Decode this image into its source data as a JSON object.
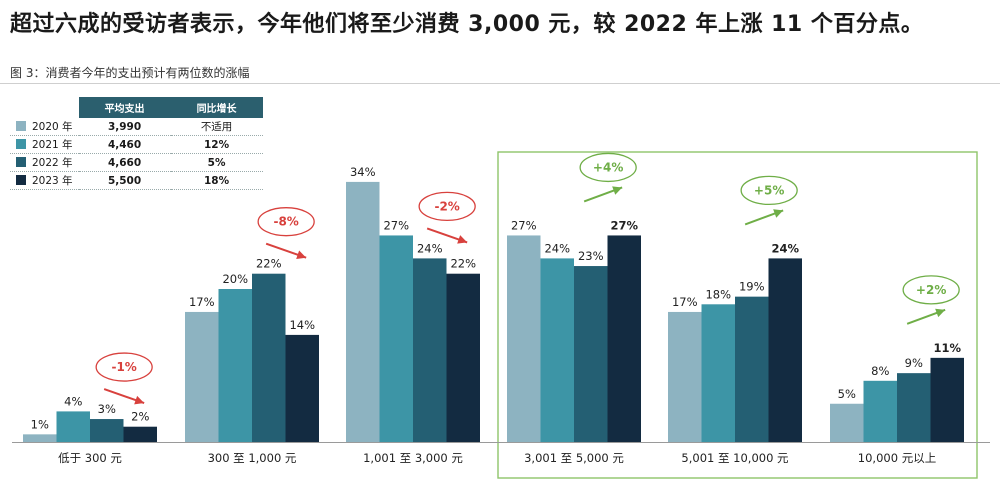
{
  "headline": "超过六成的受访者表示，今年他们将至少消费 3,000 元，较 2022 年上涨 11 个百分点。",
  "figure_caption": "图 3：消费者今年的支出预计有两位数的涨幅",
  "legend_table": {
    "headers": [
      "平均支出",
      "同比增长"
    ],
    "rows": [
      {
        "year": "2020 年",
        "avg": "3,990",
        "yoy": "不适用",
        "color": "#8db3c1"
      },
      {
        "year": "2021 年",
        "avg": "4,460",
        "yoy": "12%",
        "color": "#3d95a6"
      },
      {
        "year": "2022 年",
        "avg": "4,660",
        "yoy": "5%",
        "color": "#245f73"
      },
      {
        "year": "2023 年",
        "avg": "5,500",
        "yoy": "18%",
        "color": "#132b41"
      }
    ]
  },
  "chart_data": {
    "type": "bar",
    "categories": [
      "低于 300 元",
      "300 至 1,000 元",
      "1,001 至 3,000 元",
      "3,001 至 5,000 元",
      "5,001 至 10,000 元",
      "10,000 元以上"
    ],
    "series": [
      {
        "name": "2020 年",
        "color": "#8db3c1",
        "values": [
          1,
          17,
          34,
          27,
          17,
          5
        ],
        "labels": [
          "1%",
          "17%",
          "34%",
          "27%",
          "17%",
          "5%"
        ]
      },
      {
        "name": "2021 年",
        "color": "#3d95a6",
        "values": [
          4,
          20,
          27,
          24,
          18,
          8
        ],
        "labels": [
          "4%",
          "20%",
          "27%",
          "24%",
          "18%",
          "8%"
        ]
      },
      {
        "name": "2022 年",
        "color": "#245f73",
        "values": [
          3,
          22,
          24,
          23,
          19,
          9
        ],
        "labels": [
          "3%",
          "22%",
          "24%",
          "23%",
          "19%",
          "9%"
        ]
      },
      {
        "name": "2023 年",
        "color": "#132b41",
        "values": [
          2,
          14,
          22,
          27,
          24,
          11
        ],
        "labels": [
          "2%",
          "14%",
          "22%",
          "27%",
          "24%",
          "11%"
        ]
      }
    ],
    "ylim": [
      0,
      36
    ],
    "annotations": [
      {
        "category": "低于 300 元",
        "text": "-1%",
        "direction": "down",
        "color": "#d8413d"
      },
      {
        "category": "300 至 1,000 元",
        "text": "-8%",
        "direction": "down",
        "color": "#d8413d"
      },
      {
        "category": "1,001 至 3,000 元",
        "text": "-2%",
        "direction": "down",
        "color": "#d8413d"
      },
      {
        "category": "3,001 至 5,000 元",
        "text": "+4%",
        "direction": "up",
        "color": "#6fae47"
      },
      {
        "category": "5,001 至 10,000 元",
        "text": "+5%",
        "direction": "up",
        "color": "#6fae47"
      },
      {
        "category": "10,000 元以上",
        "text": "+2%",
        "direction": "up",
        "color": "#6fae47"
      }
    ],
    "highlight": {
      "categories": [
        "3,001 至 5,000 元",
        "5,001 至 10,000 元",
        "10,000 元以上"
      ],
      "color": "#8fc46a"
    }
  }
}
